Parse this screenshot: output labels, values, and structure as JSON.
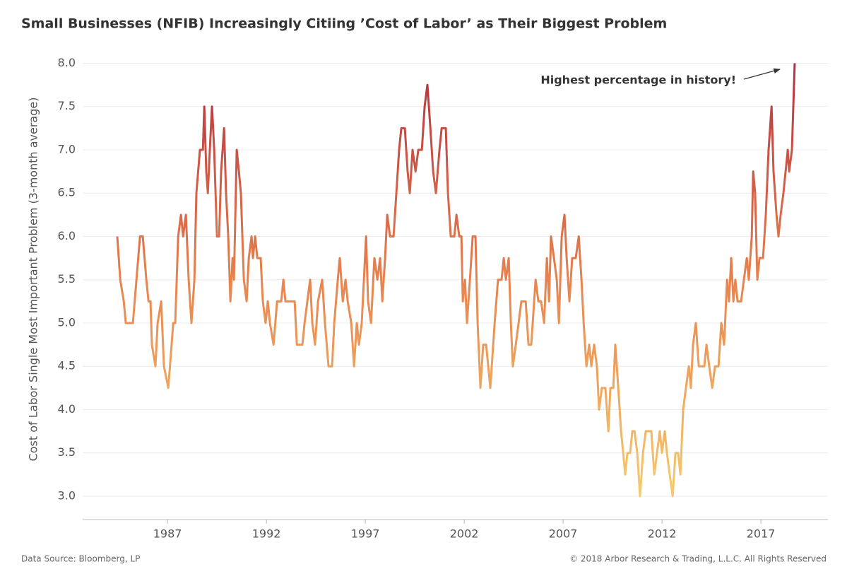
{
  "chart_data": {
    "type": "line",
    "title": "Small Businesses (NFIB) Increasingly Citiing ’Cost of Labor’ as Their Biggest Problem",
    "ylabel": "Cost of Labor Single Most Important Problem (3-month average)",
    "annotation": "Highest percentage in history!",
    "source": "Data Source: Bloomberg, LP",
    "copyright": "© 2018 Arbor Research & Trading, L.L.C. All Rights Reserved",
    "color_scale": [
      "#f5cb6e",
      "#e8834f",
      "#b3303f"
    ],
    "grid": true,
    "xlim": [
      1982.71,
      2020.39
    ],
    "ylim": [
      2.73,
      8.2
    ],
    "xticks": [
      1987,
      1992,
      1997,
      2002,
      2007,
      2012,
      2017
    ],
    "yticks": [
      {
        "value": 3,
        "label": "3.0"
      },
      3.5,
      {
        "value": 4,
        "label": "4.0"
      },
      4.5,
      {
        "value": 5,
        "label": "5.0"
      },
      5.5,
      {
        "value": 6,
        "label": "6.0"
      },
      6.5,
      {
        "value": 7,
        "label": "7.0"
      },
      7.5,
      {
        "value": 8,
        "label": "8.0"
      }
    ],
    "x": [
      1984.46,
      1984.61,
      1984.79,
      1984.89,
      1985.25,
      1985.43,
      1985.61,
      1985.75,
      1985.93,
      1986.04,
      1986.14,
      1986.21,
      1986.39,
      1986.5,
      1986.68,
      1986.82,
      1987.04,
      1987.29,
      1987.39,
      1987.54,
      1987.68,
      1987.79,
      1987.93,
      1988.07,
      1988.21,
      1988.36,
      1988.46,
      1988.64,
      1988.79,
      1988.86,
      1988.96,
      1989.04,
      1989.14,
      1989.25,
      1989.36,
      1989.5,
      1989.61,
      1989.71,
      1989.86,
      1989.96,
      1990.07,
      1990.18,
      1990.29,
      1990.36,
      1990.5,
      1990.61,
      1990.71,
      1990.86,
      1991.0,
      1991.11,
      1991.25,
      1991.32,
      1991.43,
      1991.54,
      1991.71,
      1991.82,
      1991.96,
      1992.07,
      1992.18,
      1992.36,
      1992.54,
      1992.75,
      1992.86,
      1992.96,
      1993.18,
      1993.43,
      1993.54,
      1993.82,
      1993.93,
      1994.07,
      1994.21,
      1994.32,
      1994.46,
      1994.61,
      1994.82,
      1994.96,
      1995.14,
      1995.32,
      1995.43,
      1995.61,
      1995.71,
      1995.86,
      1996.0,
      1996.11,
      1996.29,
      1996.43,
      1996.57,
      1996.68,
      1996.82,
      1996.93,
      1997.04,
      1997.14,
      1997.29,
      1997.46,
      1997.61,
      1997.75,
      1997.86,
      1998.0,
      1998.11,
      1998.25,
      1998.43,
      1998.57,
      1998.71,
      1998.82,
      1999.0,
      1999.14,
      1999.25,
      1999.39,
      1999.54,
      1999.68,
      1999.86,
      2000.0,
      2000.14,
      2000.29,
      2000.43,
      2000.57,
      2000.75,
      2000.86,
      2001.07,
      2001.18,
      2001.32,
      2001.5,
      2001.61,
      2001.75,
      2001.86,
      2001.93,
      2002.04,
      2002.14,
      2002.29,
      2002.43,
      2002.57,
      2002.68,
      2002.82,
      2002.96,
      2003.11,
      2003.32,
      2003.54,
      2003.71,
      2003.89,
      2004.0,
      2004.11,
      2004.25,
      2004.36,
      2004.46,
      2004.61,
      2004.75,
      2004.89,
      2005.11,
      2005.25,
      2005.39,
      2005.61,
      2005.75,
      2005.89,
      2006.04,
      2006.18,
      2006.29,
      2006.39,
      2006.54,
      2006.68,
      2006.79,
      2006.93,
      2007.07,
      2007.18,
      2007.32,
      2007.46,
      2007.64,
      2007.79,
      2007.93,
      2008.04,
      2008.18,
      2008.32,
      2008.43,
      2008.57,
      2008.71,
      2008.82,
      2008.96,
      2009.14,
      2009.29,
      2009.39,
      2009.54,
      2009.64,
      2009.79,
      2009.93,
      2010.04,
      2010.14,
      2010.25,
      2010.39,
      2010.5,
      2010.61,
      2010.75,
      2010.89,
      2011.04,
      2011.18,
      2011.32,
      2011.46,
      2011.61,
      2011.75,
      2011.89,
      2012.0,
      2012.14,
      2012.25,
      2012.39,
      2012.54,
      2012.68,
      2012.82,
      2012.93,
      2013.07,
      2013.21,
      2013.36,
      2013.46,
      2013.57,
      2013.71,
      2013.86,
      2014.0,
      2014.14,
      2014.25,
      2014.39,
      2014.54,
      2014.68,
      2014.86,
      2015.0,
      2015.14,
      2015.29,
      2015.39,
      2015.5,
      2015.61,
      2015.71,
      2015.82,
      2016.0,
      2016.14,
      2016.29,
      2016.39,
      2016.54,
      2016.61,
      2016.71,
      2016.82,
      2016.93,
      2017.11,
      2017.25,
      2017.39,
      2017.54,
      2017.64,
      2017.79,
      2017.89,
      2018.0,
      2018.14,
      2018.25,
      2018.36,
      2018.43,
      2018.57,
      2018.71
    ],
    "values": [
      6.0,
      5.5,
      5.25,
      5.0,
      5.0,
      5.5,
      6.0,
      6.0,
      5.5,
      5.25,
      5.25,
      4.75,
      4.5,
      5.0,
      5.25,
      4.5,
      4.25,
      5.0,
      5.0,
      6.0,
      6.25,
      6.0,
      6.25,
      5.5,
      5.0,
      5.5,
      6.5,
      7.0,
      7.0,
      7.5,
      6.75,
      6.5,
      7.0,
      7.5,
      7.0,
      6.0,
      6.0,
      6.75,
      7.25,
      6.5,
      6.0,
      5.25,
      5.75,
      5.5,
      7.0,
      6.75,
      6.5,
      5.5,
      5.25,
      5.75,
      6.0,
      5.75,
      6.0,
      5.75,
      5.75,
      5.25,
      5.0,
      5.25,
      5.0,
      4.75,
      5.25,
      5.25,
      5.5,
      5.25,
      5.25,
      5.25,
      4.75,
      4.75,
      5.0,
      5.25,
      5.5,
      5.0,
      4.75,
      5.25,
      5.5,
      5.0,
      4.5,
      4.5,
      5.0,
      5.5,
      5.75,
      5.25,
      5.5,
      5.25,
      5.0,
      4.5,
      5.0,
      4.75,
      5.0,
      5.5,
      6.0,
      5.25,
      5.0,
      5.75,
      5.5,
      5.75,
      5.25,
      5.75,
      6.25,
      6.0,
      6.0,
      6.5,
      7.0,
      7.25,
      7.25,
      6.75,
      6.5,
      7.0,
      6.75,
      7.0,
      7.0,
      7.5,
      7.75,
      7.25,
      6.75,
      6.5,
      7.0,
      7.25,
      7.25,
      6.5,
      6.0,
      6.0,
      6.25,
      6.0,
      6.0,
      5.25,
      5.5,
      5.0,
      5.5,
      6.0,
      6.0,
      5.0,
      4.25,
      4.75,
      4.75,
      4.25,
      5.0,
      5.5,
      5.5,
      5.75,
      5.5,
      5.75,
      5.0,
      4.5,
      4.75,
      5.0,
      5.25,
      5.25,
      4.75,
      4.75,
      5.5,
      5.25,
      5.25,
      5.0,
      5.75,
      5.25,
      6.0,
      5.75,
      5.5,
      5.0,
      6.0,
      6.25,
      5.75,
      5.25,
      5.75,
      5.75,
      6.0,
      5.5,
      5.0,
      4.5,
      4.75,
      4.5,
      4.75,
      4.5,
      4.0,
      4.25,
      4.25,
      3.75,
      4.25,
      4.25,
      4.75,
      4.25,
      3.75,
      3.5,
      3.25,
      3.5,
      3.5,
      3.75,
      3.75,
      3.5,
      3.0,
      3.5,
      3.75,
      3.75,
      3.75,
      3.25,
      3.5,
      3.75,
      3.5,
      3.75,
      3.5,
      3.25,
      3.0,
      3.5,
      3.5,
      3.25,
      4.0,
      4.25,
      4.5,
      4.25,
      4.75,
      5.0,
      4.5,
      4.5,
      4.5,
      4.75,
      4.5,
      4.25,
      4.5,
      4.5,
      5.0,
      4.75,
      5.5,
      5.25,
      5.75,
      5.25,
      5.5,
      5.25,
      5.25,
      5.5,
      5.75,
      5.5,
      6.0,
      6.75,
      6.5,
      5.5,
      5.75,
      5.75,
      6.25,
      7.0,
      7.5,
      6.75,
      6.25,
      6.0,
      6.25,
      6.5,
      6.75,
      7.0,
      6.75,
      7.0,
      8.0
    ]
  }
}
